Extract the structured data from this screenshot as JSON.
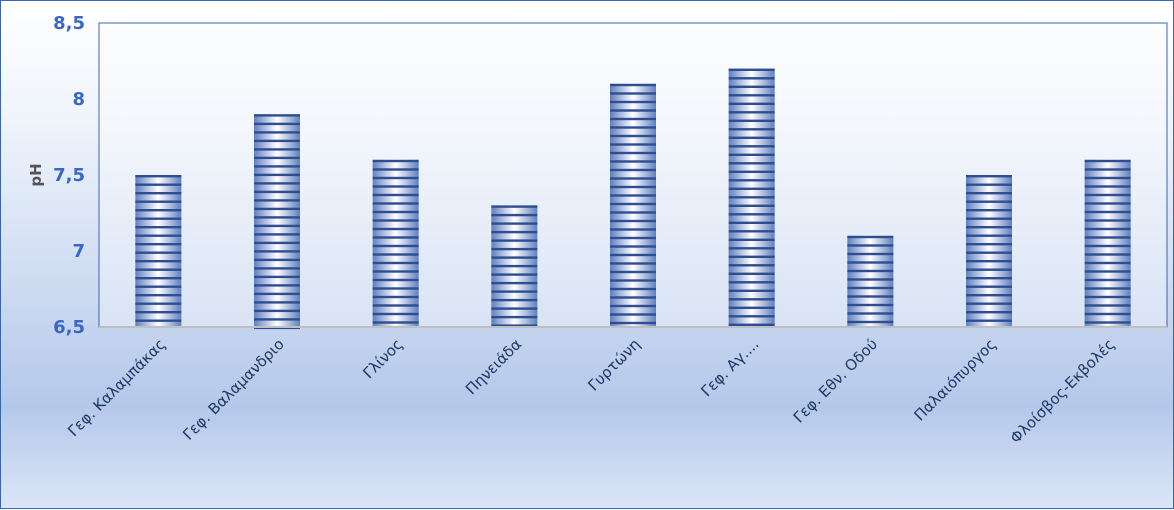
{
  "chart_data": {
    "type": "bar",
    "ylabel": "pH",
    "ylim": [
      6.5,
      8.5
    ],
    "yticks": [
      "6,5",
      "7",
      "7,5",
      "8",
      "8,5"
    ],
    "grid": false,
    "categories": [
      "Γεφ. Καλαμπάκας",
      "Γεφ. Βαλαμανδριο",
      "Γλίνος",
      "Πηνειάδα",
      "Γυρτώνη",
      "Γεφ. Αγ....",
      "Γεφ. Εθν. Οδού",
      "Παλαιόπυργος",
      "Φλοίσβος-Εκβολές"
    ],
    "values": [
      7.5,
      7.9,
      7.6,
      7.3,
      8.1,
      8.2,
      7.1,
      7.5,
      7.6
    ],
    "bar_color": "#2e4f8f"
  }
}
